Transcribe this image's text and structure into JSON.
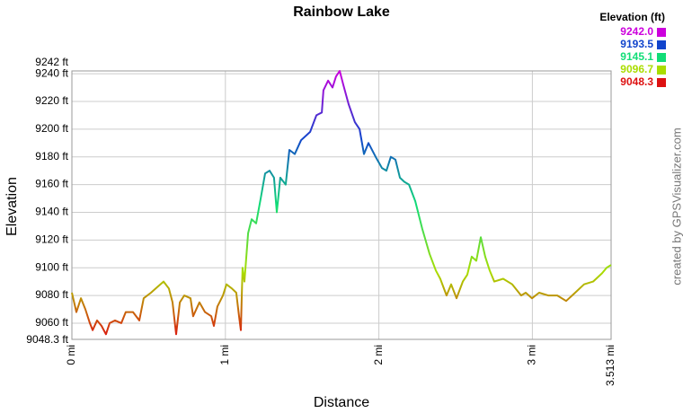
{
  "chart_data": {
    "type": "line",
    "title": "Rainbow Lake",
    "x_label": "Distance",
    "y_label": "Elevation",
    "credit": "created by GPSVisualizer.com",
    "x": [
      0,
      0.029,
      0.059,
      0.088,
      0.117,
      0.135,
      0.164,
      0.193,
      0.222,
      0.246,
      0.281,
      0.322,
      0.351,
      0.398,
      0.439,
      0.468,
      0.515,
      0.556,
      0.597,
      0.632,
      0.656,
      0.679,
      0.703,
      0.732,
      0.773,
      0.79,
      0.831,
      0.867,
      0.908,
      0.925,
      0.948,
      0.984,
      1.007,
      1.042,
      1.071,
      1.089,
      1.101,
      1.112,
      1.124,
      1.148,
      1.171,
      1.2,
      1.23,
      1.259,
      1.288,
      1.317,
      1.335,
      1.358,
      1.393,
      1.417,
      1.452,
      1.493,
      1.552,
      1.593,
      1.628,
      1.639,
      1.669,
      1.698,
      1.721,
      1.745,
      1.768,
      1.803,
      1.844,
      1.874,
      1.903,
      1.932,
      1.979,
      2.02,
      2.049,
      2.078,
      2.108,
      2.137,
      2.166,
      2.196,
      2.237,
      2.283,
      2.33,
      2.371,
      2.4,
      2.441,
      2.471,
      2.506,
      2.547,
      2.576,
      2.605,
      2.635,
      2.664,
      2.693,
      2.722,
      2.752,
      2.81,
      2.869,
      2.927,
      2.957,
      2.998,
      3.044,
      3.103,
      3.162,
      3.22,
      3.279,
      3.337,
      3.396,
      3.454,
      3.484,
      3.513
    ],
    "values": [
      9082,
      9068,
      9078,
      9070,
      9060,
      9055,
      9062,
      9058,
      9052,
      9060,
      9062,
      9060,
      9068,
      9068,
      9062,
      9078,
      9082,
      9086,
      9090,
      9085,
      9075,
      9052,
      9075,
      9080,
      9078,
      9065,
      9075,
      9068,
      9065,
      9058,
      9072,
      9080,
      9088,
      9085,
      9082,
      9065,
      9055,
      9100,
      9090,
      9125,
      9135,
      9132,
      9150,
      9168,
      9170,
      9165,
      9140,
      9165,
      9160,
      9185,
      9182,
      9192,
      9198,
      9210,
      9212,
      9228,
      9235,
      9230,
      9238,
      9242,
      9232,
      9218,
      9205,
      9200,
      9182,
      9190,
      9180,
      9172,
      9170,
      9180,
      9178,
      9165,
      9162,
      9160,
      9148,
      9128,
      9110,
      9098,
      9092,
      9080,
      9088,
      9078,
      9090,
      9095,
      9108,
      9105,
      9122,
      9108,
      9098,
      9090,
      9092,
      9088,
      9080,
      9082,
      9078,
      9082,
      9080,
      9080,
      9076,
      9082,
      9088,
      9090,
      9096,
      9100,
      9102
    ],
    "xlim": [
      0,
      3.513
    ],
    "xticks": [
      {
        "value": 0,
        "label": "0 mi"
      },
      {
        "value": 1,
        "label": "1 mi"
      },
      {
        "value": 2,
        "label": "2 mi"
      },
      {
        "value": 3,
        "label": "3 mi"
      },
      {
        "value": 3.513,
        "label": "3.513 mi"
      }
    ],
    "ylim": [
      9048.3,
      9242
    ],
    "yticks": [
      {
        "value": 9048.3,
        "label": "9048.3 ft"
      },
      {
        "value": 9060,
        "label": "9060 ft"
      },
      {
        "value": 9080,
        "label": "9080 ft"
      },
      {
        "value": 9100,
        "label": "9100 ft"
      },
      {
        "value": 9120,
        "label": "9120 ft"
      },
      {
        "value": 9140,
        "label": "9140 ft"
      },
      {
        "value": 9160,
        "label": "9160 ft"
      },
      {
        "value": 9180,
        "label": "9180 ft"
      },
      {
        "value": 9200,
        "label": "9200 ft"
      },
      {
        "value": 9220,
        "label": "9220 ft"
      },
      {
        "value": 9240,
        "label": "9240 ft"
      },
      {
        "value": 9242,
        "label": "9242 ft"
      }
    ],
    "grid": true,
    "legend": {
      "title": "Elevation (ft)",
      "entries": [
        {
          "value": 9242,
          "label": "9242.0",
          "color": "#cc00dd"
        },
        {
          "value": 9193.5,
          "label": "9193.5",
          "color": "#1144cc"
        },
        {
          "value": 9145.1,
          "label": "9145.1",
          "color": "#11dd77"
        },
        {
          "value": 9096.7,
          "label": "9096.7",
          "color": "#aadd00"
        },
        {
          "value": 9048.3,
          "label": "9048.3",
          "color": "#dd1111"
        }
      ]
    }
  }
}
